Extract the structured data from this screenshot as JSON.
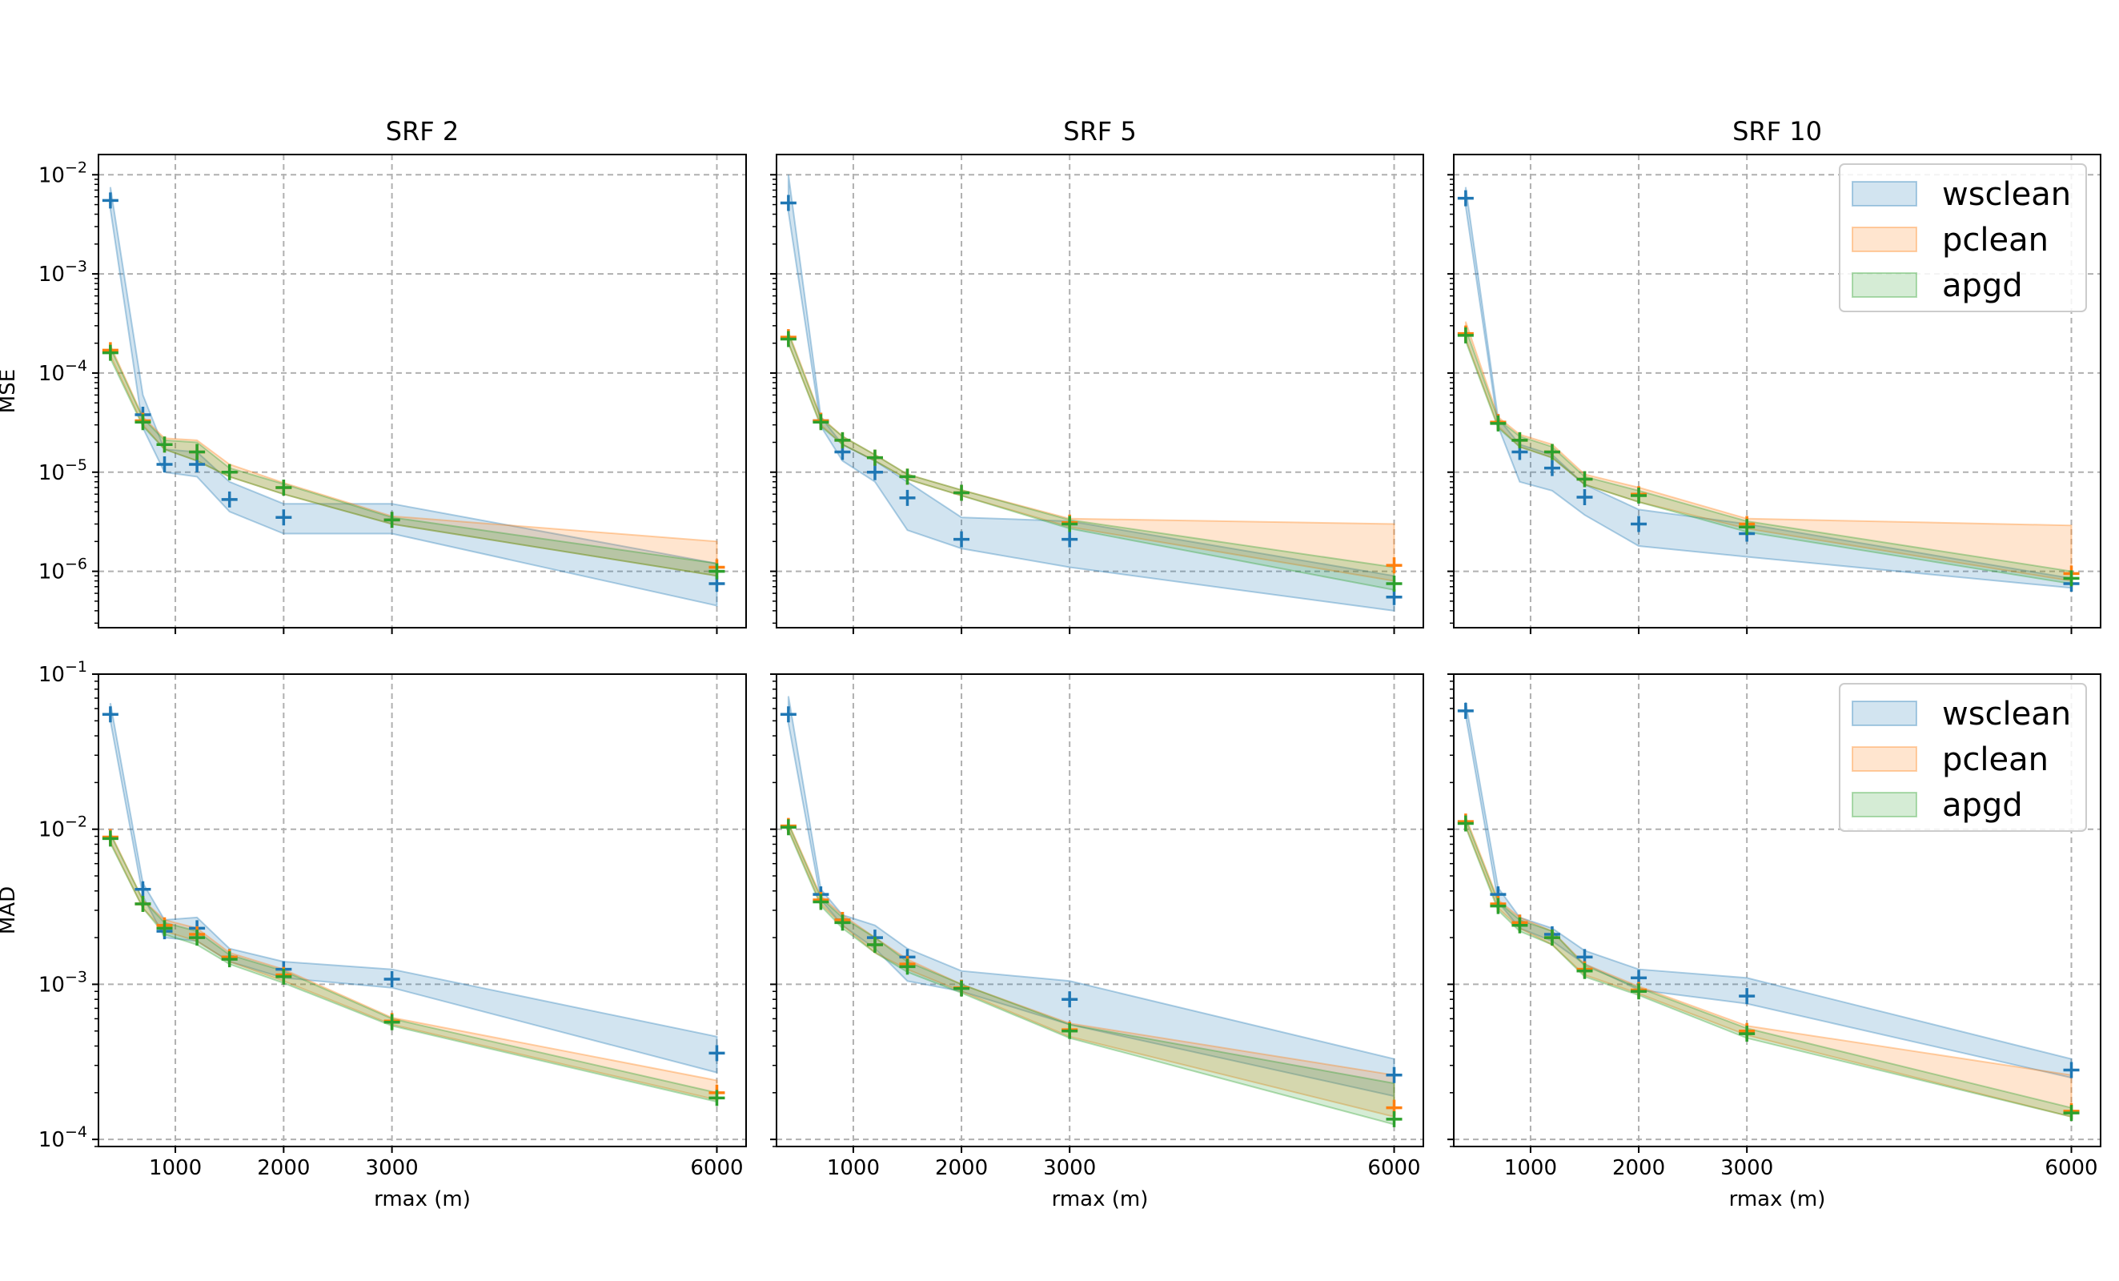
{
  "chart_data": {
    "type": "line",
    "style": "markers with shaded min-max bands, log y-axis",
    "x_label": "rmax (m)",
    "x_ticks": [
      1000,
      2000,
      3000,
      6000
    ],
    "x": [
      400,
      700,
      900,
      1200,
      1500,
      2000,
      3000,
      6000
    ],
    "columns": [
      "SRF 2",
      "SRF 5",
      "SRF 10"
    ],
    "rows": [
      {
        "metric": "MSE",
        "ylim": [
          2.7e-07,
          0.016
        ],
        "y_ticks": [
          1e-06,
          1e-05,
          0.0001,
          0.001,
          0.01
        ],
        "y_tick_labels": [
          [
            "10",
            "−6"
          ],
          [
            "10",
            "−5"
          ],
          [
            "10",
            "−4"
          ],
          [
            "10",
            "−3"
          ],
          [
            "10",
            "−2"
          ]
        ]
      },
      {
        "metric": "MAD",
        "ylim": [
          9e-05,
          0.1
        ],
        "y_ticks": [
          0.0001,
          0.001,
          0.01,
          0.1
        ],
        "y_tick_labels": [
          [
            "10",
            "−4"
          ],
          [
            "10",
            "−3"
          ],
          [
            "10",
            "−2"
          ],
          [
            "10",
            "−1"
          ]
        ]
      }
    ],
    "series_names": [
      "wsclean",
      "pclean",
      "apgd"
    ],
    "colors": {
      "wsclean": "#1f77b4",
      "pclean": "#ff7f0e",
      "apgd": "#2ca02c"
    },
    "legend": {
      "entries": [
        "wsclean",
        "pclean",
        "apgd"
      ],
      "position": "upper right",
      "panels": [
        "MSE SRF 10",
        "MAD SRF 10"
      ]
    },
    "panels": [
      {
        "title": "SRF 2",
        "metric": "MSE",
        "series": [
          {
            "name": "wsclean",
            "values": [
              0.0055,
              3.8e-05,
              1.2e-05,
              1.2e-05,
              5.3e-06,
              3.5e-06,
              3.3e-06,
              7.5e-07
            ],
            "lower": [
              0.0045,
              2.8e-05,
              1e-05,
              9e-06,
              4e-06,
              2.4e-06,
              2.4e-06,
              4.5e-07
            ],
            "upper": [
              0.0075,
              6e-05,
              1.7e-05,
              1.6e-05,
              8e-06,
              4.8e-06,
              4.8e-06,
              1.2e-06
            ]
          },
          {
            "name": "pclean",
            "values": [
              0.00017,
              3.3e-05,
              1.9e-05,
              1.6e-05,
              1e-05,
              7e-06,
              3.3e-06,
              1.1e-06
            ],
            "lower": [
              0.00015,
              3e-05,
              1.7e-05,
              1.3e-05,
              9e-06,
              6e-06,
              3e-06,
              9e-07
            ],
            "upper": [
              0.00019,
              3.6e-05,
              2.2e-05,
              2.1e-05,
              1.2e-05,
              7.8e-06,
              3.6e-06,
              2e-06
            ]
          },
          {
            "name": "apgd",
            "values": [
              0.00016,
              3.2e-05,
              1.9e-05,
              1.6e-05,
              1e-05,
              7e-06,
              3.3e-06,
              1e-06
            ],
            "lower": [
              0.00014,
              2.9e-05,
              1.7e-05,
              1.3e-05,
              9e-06,
              6e-06,
              3e-06,
              9e-07
            ],
            "upper": [
              0.00018,
              3.5e-05,
              2.1e-05,
              2e-05,
              1.1e-05,
              7.6e-06,
              3.5e-06,
              1.2e-06
            ]
          }
        ]
      },
      {
        "title": "SRF 5",
        "metric": "MSE",
        "series": [
          {
            "name": "wsclean",
            "values": [
              0.0052,
              3.3e-05,
              1.6e-05,
              1e-05,
              5.5e-06,
              2.1e-06,
              2.1e-06,
              5.5e-07
            ],
            "lower": [
              0.0042,
              2.9e-05,
              1.3e-05,
              8e-06,
              2.6e-06,
              1.7e-06,
              1.1e-06,
              4e-07
            ],
            "upper": [
              0.01,
              3.6e-05,
              1.9e-05,
              1.3e-05,
              8e-06,
              3.5e-06,
              3.2e-06,
              9e-07
            ]
          },
          {
            "name": "pclean",
            "values": [
              0.00023,
              3.3e-05,
              2.1e-05,
              1.4e-05,
              9e-06,
              6.2e-06,
              3.1e-06,
              1.15e-06
            ],
            "lower": [
              0.0002,
              3e-05,
              1.9e-05,
              1.3e-05,
              8.5e-06,
              5.8e-06,
              2.8e-06,
              8e-07
            ],
            "upper": [
              0.00026,
              3.6e-05,
              2.3e-05,
              1.5e-05,
              9.5e-06,
              6.6e-06,
              3.4e-06,
              3e-06
            ]
          },
          {
            "name": "apgd",
            "values": [
              0.00022,
              3.2e-05,
              2.1e-05,
              1.4e-05,
              9e-06,
              6.2e-06,
              3e-06,
              7.5e-07
            ],
            "lower": [
              0.0002,
              2.9e-05,
              1.9e-05,
              1.3e-05,
              8.5e-06,
              5.8e-06,
              2.7e-06,
              6.5e-07
            ],
            "upper": [
              0.00025,
              3.5e-05,
              2.3e-05,
              1.5e-05,
              9.5e-06,
              6.6e-06,
              3.3e-06,
              1.1e-06
            ]
          }
        ]
      },
      {
        "title": "SRF 10",
        "metric": "MSE",
        "series": [
          {
            "name": "wsclean",
            "values": [
              0.0058,
              3.2e-05,
              1.6e-05,
              1.1e-05,
              5.6e-06,
              3e-06,
              2.4e-06,
              7.5e-07
            ],
            "lower": [
              0.0048,
              2.9e-05,
              8e-06,
              6.5e-06,
              3.7e-06,
              1.8e-06,
              1.4e-06,
              6.8e-07
            ],
            "upper": [
              0.0075,
              3.5e-05,
              1.9e-05,
              1.5e-05,
              7.5e-06,
              4.2e-06,
              3e-06,
              8.5e-07
            ]
          },
          {
            "name": "pclean",
            "values": [
              0.00025,
              3.2e-05,
              2.1e-05,
              1.6e-05,
              8.5e-06,
              6e-06,
              3e-06,
              9.5e-07
            ],
            "lower": [
              0.00022,
              2.9e-05,
              1.8e-05,
              1.4e-05,
              7.5e-06,
              5e-06,
              2.7e-06,
              8e-07
            ],
            "upper": [
              0.00033,
              3.6e-05,
              2.4e-05,
              1.9e-05,
              9.5e-06,
              7e-06,
              3.4e-06,
              2.9e-06
            ]
          },
          {
            "name": "apgd",
            "values": [
              0.00024,
              3.1e-05,
              2.1e-05,
              1.6e-05,
              8.5e-06,
              5.8e-06,
              2.8e-06,
              8.5e-07
            ],
            "lower": [
              0.00021,
              2.8e-05,
              1.8e-05,
              1.4e-05,
              7.5e-06,
              5e-06,
              2.5e-06,
              7.5e-07
            ],
            "upper": [
              0.00028,
              3.4e-05,
              2.3e-05,
              1.8e-05,
              9e-06,
              6.5e-06,
              3.2e-06,
              1e-06
            ]
          }
        ]
      },
      {
        "title": "SRF 2",
        "metric": "MAD",
        "series": [
          {
            "name": "wsclean",
            "values": [
              0.055,
              0.0041,
              0.0022,
              0.0023,
              0.0015,
              0.00125,
              0.00108,
              0.00036
            ],
            "lower": [
              0.05,
              0.0037,
              0.002,
              0.0019,
              0.0014,
              0.0011,
              0.00095,
              0.00027
            ],
            "upper": [
              0.065,
              0.0045,
              0.0026,
              0.0027,
              0.0017,
              0.0014,
              0.00125,
              0.00046
            ]
          },
          {
            "name": "pclean",
            "values": [
              0.0089,
              0.0033,
              0.0024,
              0.0021,
              0.0015,
              0.00115,
              0.00058,
              0.0002
            ],
            "lower": [
              0.0083,
              0.0031,
              0.0022,
              0.0019,
              0.0014,
              0.00105,
              0.00055,
              0.00018
            ],
            "upper": [
              0.0095,
              0.0035,
              0.0026,
              0.0023,
              0.0016,
              0.00125,
              0.00061,
              0.00024
            ]
          },
          {
            "name": "apgd",
            "values": [
              0.0087,
              0.0033,
              0.0023,
              0.002,
              0.00145,
              0.00112,
              0.00057,
              0.000185
            ],
            "lower": [
              0.0081,
              0.0031,
              0.0021,
              0.0018,
              0.00135,
              0.00102,
              0.00054,
              0.000175
            ],
            "upper": [
              0.0093,
              0.0035,
              0.0025,
              0.0022,
              0.00155,
              0.00122,
              0.0006,
              0.0002
            ]
          }
        ]
      },
      {
        "title": "SRF 5",
        "metric": "MAD",
        "series": [
          {
            "name": "wsclean",
            "values": [
              0.055,
              0.0038,
              0.0026,
              0.002,
              0.0015,
              0.00095,
              0.0008,
              0.00026
            ],
            "lower": [
              0.048,
              0.0035,
              0.0024,
              0.0017,
              0.00105,
              0.0009,
              0.00055,
              0.00019
            ],
            "upper": [
              0.072,
              0.0041,
              0.0028,
              0.0024,
              0.0017,
              0.00122,
              0.00105,
              0.00033
            ]
          },
          {
            "name": "pclean",
            "values": [
              0.0105,
              0.0035,
              0.0026,
              0.0018,
              0.00135,
              0.00095,
              0.00051,
              0.00016
            ],
            "lower": [
              0.01,
              0.0033,
              0.0024,
              0.0016,
              0.00125,
              0.0009,
              0.00046,
              0.00014
            ],
            "upper": [
              0.011,
              0.0037,
              0.0028,
              0.002,
              0.00145,
              0.001,
              0.00056,
              0.00026
            ]
          },
          {
            "name": "apgd",
            "values": [
              0.0103,
              0.0034,
              0.0025,
              0.0018,
              0.0013,
              0.00094,
              0.0005,
              0.000135
            ],
            "lower": [
              0.0098,
              0.0032,
              0.0023,
              0.0016,
              0.0012,
              0.00088,
              0.00045,
              0.000125
            ],
            "upper": [
              0.0108,
              0.0036,
              0.0027,
              0.002,
              0.0014,
              0.001,
              0.00055,
              0.00023
            ]
          }
        ]
      },
      {
        "title": "SRF 10",
        "metric": "MAD",
        "series": [
          {
            "name": "wsclean",
            "values": [
              0.058,
              0.0038,
              0.0025,
              0.0021,
              0.0015,
              0.0011,
              0.00084,
              0.00028
            ],
            "lower": [
              0.054,
              0.0034,
              0.0023,
              0.0019,
              0.00135,
              0.00092,
              0.00075,
              0.00025
            ],
            "upper": [
              0.066,
              0.0042,
              0.0027,
              0.0023,
              0.00165,
              0.00125,
              0.0011,
              0.00033
            ]
          },
          {
            "name": "pclean",
            "values": [
              0.0112,
              0.0033,
              0.0025,
              0.002,
              0.00125,
              0.00092,
              0.0005,
              0.000152
            ],
            "lower": [
              0.0105,
              0.0031,
              0.0023,
              0.0018,
              0.00115,
              0.00087,
              0.00047,
              0.00014
            ],
            "upper": [
              0.012,
              0.0035,
              0.0027,
              0.0022,
              0.00135,
              0.00097,
              0.00054,
              0.00026
            ]
          },
          {
            "name": "apgd",
            "values": [
              0.0109,
              0.0032,
              0.0024,
              0.002,
              0.00122,
              0.0009,
              0.00048,
              0.000148
            ],
            "lower": [
              0.0103,
              0.003,
              0.0022,
              0.0018,
              0.00112,
              0.00085,
              0.00045,
              0.00014
            ],
            "upper": [
              0.0116,
              0.0034,
              0.0026,
              0.0022,
              0.00132,
              0.00095,
              0.00052,
              0.00016
            ]
          }
        ]
      }
    ]
  }
}
